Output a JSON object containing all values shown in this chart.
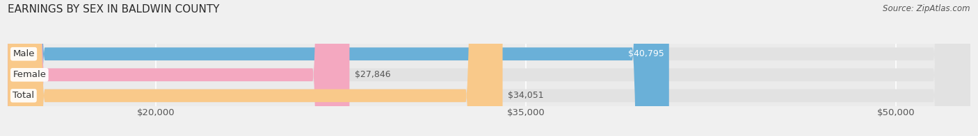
{
  "title": "EARNINGS BY SEX IN BALDWIN COUNTY",
  "source": "Source: ZipAtlas.com",
  "categories": [
    "Male",
    "Female",
    "Total"
  ],
  "values": [
    40795,
    27846,
    34051
  ],
  "bar_colors": [
    "#6ab0d8",
    "#f4a8c0",
    "#f9c98a"
  ],
  "bar_bg_color": "#e2e2e2",
  "xmin": 14000,
  "xmax": 53000,
  "xticks": [
    20000,
    35000,
    50000
  ],
  "xtick_labels": [
    "$20,000",
    "$35,000",
    "$50,000"
  ],
  "bar_height": 0.62,
  "title_fontsize": 11,
  "label_fontsize": 9.5,
  "value_fontsize": 9,
  "source_fontsize": 8.5,
  "fig_bg_color": "#f0f0f0",
  "plot_bg_color": "#ebebeb",
  "grid_color": "#ffffff",
  "value_label_color_inside": "#ffffff",
  "value_label_color_outside": "#555555",
  "category_label_color": "#333333"
}
